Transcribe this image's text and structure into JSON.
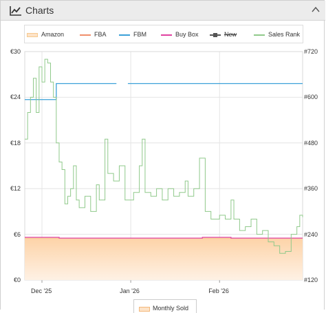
{
  "header": {
    "title": "Charts",
    "icon": "line-chart-icon",
    "toggle_icon": "chevron-up-icon"
  },
  "legend": [
    {
      "label": "Amazon",
      "color": "#f6c98e",
      "style": "area",
      "strike": false
    },
    {
      "label": "FBA",
      "color": "#f08e6a",
      "style": "line",
      "strike": false
    },
    {
      "label": "FBM",
      "color": "#3aa0d8",
      "style": "line",
      "strike": false
    },
    {
      "label": "Buy Box",
      "color": "#e040a0",
      "style": "line",
      "strike": false
    },
    {
      "label": "New",
      "color": "#555555",
      "style": "square-line",
      "strike": true
    },
    {
      "label": "Sales Rank",
      "color": "#8fc98a",
      "style": "line",
      "strike": false
    }
  ],
  "bottom_legend": {
    "label": "Monthly Sold",
    "color": "#f6c98e"
  },
  "chart_data": {
    "type": "line",
    "x_range": [
      "2025-11-25",
      "2026-03-02"
    ],
    "x_ticks": [
      {
        "date": "2025-12-01",
        "label": "Dec '25"
      },
      {
        "date": "2026-01-01",
        "label": "Jan '26"
      },
      {
        "date": "2026-02-01",
        "label": "Feb '26"
      }
    ],
    "y_left": {
      "ticks": [
        "€0",
        "€6",
        "€12",
        "€18",
        "€24",
        "€30"
      ],
      "range": [
        0,
        30
      ]
    },
    "y_right": {
      "ticks": [
        "#120",
        "#240",
        "#360",
        "#480",
        "#600",
        "#720"
      ],
      "range": [
        120,
        720
      ]
    },
    "grid": true,
    "series": [
      {
        "name": "Amazon",
        "type": "area",
        "color": "#f6c98e",
        "axis": "left",
        "points": [
          [
            "2025-11-25",
            5.5
          ],
          [
            "2026-03-02",
            5.5
          ]
        ]
      },
      {
        "name": "Buy Box",
        "type": "line",
        "color": "#e040a0",
        "axis": "left",
        "points": [
          [
            "2025-11-25",
            5.6
          ],
          [
            "2025-12-07",
            5.5
          ],
          [
            "2026-01-26",
            5.6
          ],
          [
            "2026-02-05",
            5.5
          ],
          [
            "2026-03-02",
            5.5
          ]
        ]
      },
      {
        "name": "FBM",
        "type": "line",
        "color": "#3aa0d8",
        "axis": "left",
        "points": [
          [
            "2025-11-25",
            23.7
          ],
          [
            "2025-12-06",
            23.7
          ],
          [
            "2025-12-06",
            25.8
          ],
          [
            "2025-12-27",
            25.8
          ],
          null,
          [
            "2025-12-31",
            25.8
          ],
          [
            "2026-03-02",
            25.8
          ]
        ]
      },
      {
        "name": "Sales Rank",
        "type": "line",
        "color": "#8fc98a",
        "axis": "right",
        "points": [
          [
            "2025-11-25",
            490
          ],
          [
            "2025-11-26",
            560
          ],
          [
            "2025-11-27",
            600
          ],
          [
            "2025-11-28",
            650
          ],
          [
            "2025-11-29",
            560
          ],
          [
            "2025-11-30",
            680
          ],
          [
            "2025-12-01",
            640
          ],
          [
            "2025-12-02",
            700
          ],
          [
            "2025-12-03",
            690
          ],
          [
            "2025-12-04",
            640
          ],
          [
            "2025-12-05",
            600
          ],
          [
            "2025-12-06",
            480
          ],
          [
            "2025-12-07",
            430
          ],
          [
            "2025-12-08",
            410
          ],
          [
            "2025-12-09",
            320
          ],
          [
            "2025-12-10",
            340
          ],
          [
            "2025-12-11",
            360
          ],
          [
            "2025-12-12",
            420
          ],
          [
            "2025-12-13",
            330
          ],
          [
            "2025-12-14",
            310
          ],
          [
            "2025-12-16",
            340
          ],
          [
            "2025-12-18",
            300
          ],
          [
            "2025-12-20",
            370
          ],
          [
            "2025-12-21",
            330
          ],
          [
            "2025-12-23",
            490
          ],
          [
            "2025-12-24",
            400
          ],
          [
            "2025-12-26",
            380
          ],
          [
            "2025-12-28",
            420
          ],
          [
            "2025-12-30",
            330
          ],
          [
            "2026-01-02",
            350
          ],
          [
            "2026-01-04",
            420
          ],
          [
            "2026-01-05",
            490
          ],
          [
            "2026-01-06",
            350
          ],
          [
            "2026-01-08",
            340
          ],
          [
            "2026-01-10",
            360
          ],
          [
            "2026-01-12",
            330
          ],
          [
            "2026-01-14",
            360
          ],
          [
            "2026-01-16",
            340
          ],
          [
            "2026-01-18",
            350
          ],
          [
            "2026-01-20",
            380
          ],
          [
            "2026-01-21",
            340
          ],
          [
            "2026-01-23",
            360
          ],
          [
            "2026-01-25",
            440
          ],
          [
            "2026-01-27",
            300
          ],
          [
            "2026-01-29",
            280
          ],
          [
            "2026-02-01",
            290
          ],
          [
            "2026-02-03",
            280
          ],
          [
            "2026-02-05",
            330
          ],
          [
            "2026-02-06",
            280
          ],
          [
            "2026-02-08",
            250
          ],
          [
            "2026-02-10",
            260
          ],
          [
            "2026-02-12",
            280
          ],
          [
            "2026-02-14",
            240
          ],
          [
            "2026-02-16",
            250
          ],
          [
            "2026-02-18",
            220
          ],
          [
            "2026-02-20",
            210
          ],
          [
            "2026-02-22",
            190
          ],
          [
            "2026-02-24",
            195
          ],
          [
            "2026-02-26",
            240
          ],
          [
            "2026-02-28",
            260
          ],
          [
            "2026-03-01",
            290
          ],
          [
            "2026-03-02",
            285
          ]
        ]
      }
    ]
  }
}
